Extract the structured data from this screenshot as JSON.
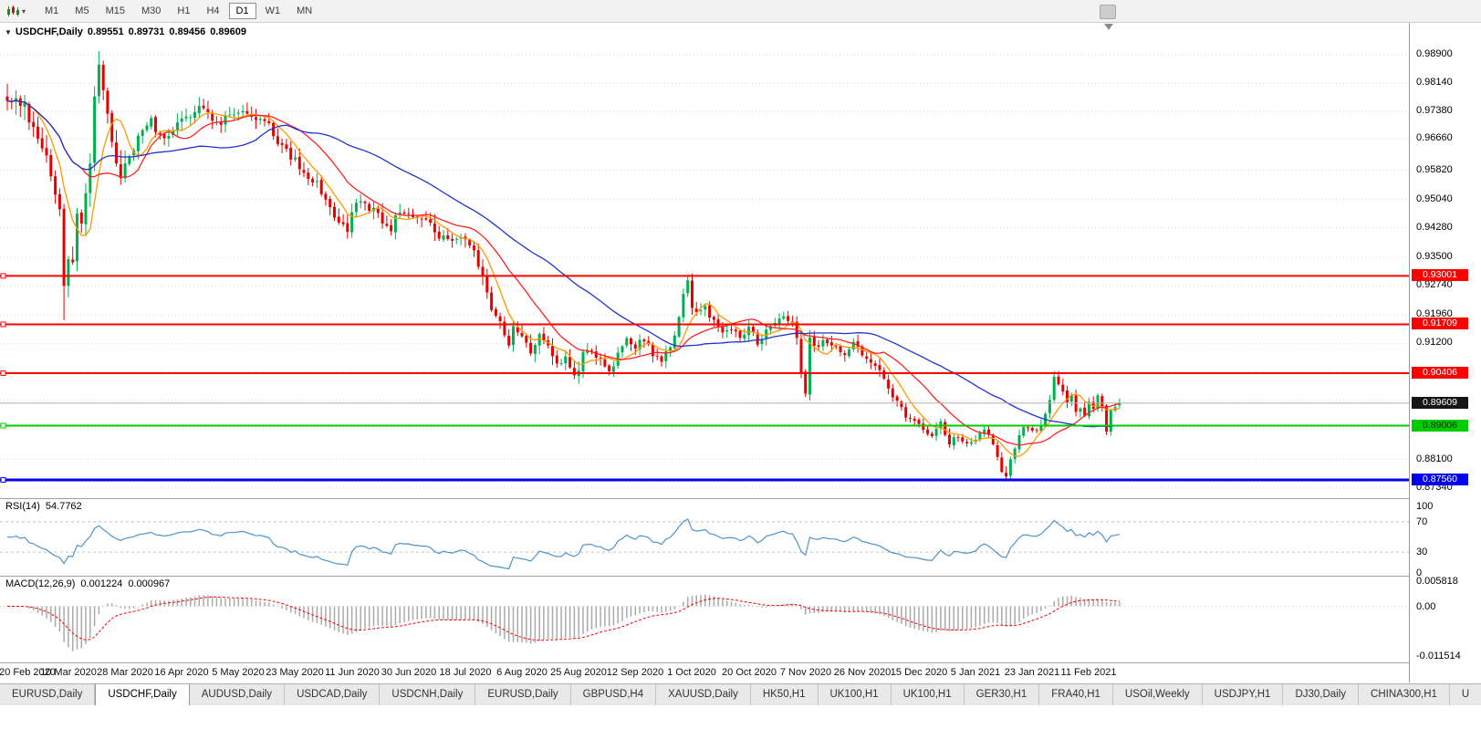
{
  "toolbar": {
    "timeframes": [
      "M1",
      "M5",
      "M15",
      "M30",
      "H1",
      "H4",
      "D1",
      "W1",
      "MN"
    ],
    "active_timeframe": "D1"
  },
  "chart_title": {
    "symbol": "USDCHF,Daily",
    "open": "0.89551",
    "high": "0.89731",
    "low": "0.89456",
    "close": "0.89609"
  },
  "price_axis": {
    "ticks": [
      "0.98900",
      "0.98140",
      "0.97380",
      "0.96660",
      "0.95820",
      "0.95040",
      "0.94280",
      "0.93500",
      "0.92740",
      "0.91960",
      "0.91200",
      "0.88100",
      "0.87340"
    ],
    "level_labels": [
      {
        "text": "0.93001",
        "price": 0.93001,
        "bg": "#ff0000",
        "fg": "#ffffff"
      },
      {
        "text": "0.91709",
        "price": 0.91709,
        "bg": "#ff0000",
        "fg": "#ffffff"
      },
      {
        "text": "0.90406",
        "price": 0.90406,
        "bg": "#ff0000",
        "fg": "#ffffff"
      },
      {
        "text": "0.89609",
        "price": 0.89609,
        "bg": "#151515",
        "fg": "#ffffff"
      },
      {
        "text": "0.89006",
        "price": 0.89006,
        "bg": "#00cc00",
        "fg": "#073300"
      },
      {
        "text": "0.87560",
        "price": 0.8756,
        "bg": "#0000ee",
        "fg": "#ffffff"
      }
    ]
  },
  "rsi_panel": {
    "name": "RSI(14)",
    "value": "54.7762",
    "axis_labels": [
      {
        "text": "100",
        "v": 100
      },
      {
        "text": "70",
        "v": 70
      },
      {
        "text": "30",
        "v": 30
      },
      {
        "text": "0",
        "v": 0
      }
    ]
  },
  "macd_panel": {
    "name": "MACD(12,26,9)",
    "value_main": "0.001224",
    "value_signal": "0.000967",
    "axis_labels": [
      {
        "text": "0.005818",
        "v": 0.005818
      },
      {
        "text": "0.00",
        "v": 0
      },
      {
        "text": "-0.011514",
        "v": -0.011514
      }
    ]
  },
  "date_axis": [
    "20 Feb 2020",
    "10 Mar 2020",
    "28 Mar 2020",
    "16 Apr 2020",
    "5 May 2020",
    "23 May 2020",
    "11 Jun 2020",
    "30 Jun 2020",
    "18 Jul 2020",
    "6 Aug 2020",
    "25 Aug 2020",
    "12 Sep 2020",
    "1 Oct 2020",
    "20 Oct 2020",
    "7 Nov 2020",
    "26 Nov 2020",
    "15 Dec 2020",
    "5 Jan 2021",
    "23 Jan 2021",
    "11 Feb 2021"
  ],
  "symbol_tabs": [
    {
      "label": "EURUSD,Daily",
      "active": false
    },
    {
      "label": "USDCHF,Daily",
      "active": true
    },
    {
      "label": "AUDUSD,Daily",
      "active": false
    },
    {
      "label": "USDCAD,Daily",
      "active": false
    },
    {
      "label": "USDCNH,Daily",
      "active": false
    },
    {
      "label": "EURUSD,Daily",
      "active": false
    },
    {
      "label": "GBPUSD,H4",
      "active": false
    },
    {
      "label": "XAUUSD,Daily",
      "active": false
    },
    {
      "label": "HK50,H1",
      "active": false
    },
    {
      "label": "UK100,H1",
      "active": false
    },
    {
      "label": "UK100,H1",
      "active": false
    },
    {
      "label": "GER30,H1",
      "active": false
    },
    {
      "label": "FRA40,H1",
      "active": false
    },
    {
      "label": "USOil,Weekly",
      "active": false
    },
    {
      "label": "USDJPY,H1",
      "active": false
    },
    {
      "label": "DJ30,Daily",
      "active": false
    },
    {
      "label": "CHINA300,H1",
      "active": false
    },
    {
      "label": "U",
      "active": false
    }
  ],
  "chart_data": {
    "type": "candlestick",
    "symbol": "USDCHF",
    "timeframe": "Daily",
    "title": "USDCHF,Daily 0.89551 0.89731 0.89456 0.89609",
    "last_ohlc": {
      "open": 0.89551,
      "high": 0.89731,
      "low": 0.89456,
      "close": 0.89609
    },
    "num_days": 256,
    "close_anchors": [
      [
        0,
        0.978
      ],
      [
        2,
        0.9772
      ],
      [
        4,
        0.9745
      ],
      [
        6,
        0.97
      ],
      [
        8,
        0.964
      ],
      [
        10,
        0.958
      ],
      [
        12,
        0.948
      ],
      [
        13,
        0.9285
      ],
      [
        14,
        0.936
      ],
      [
        15,
        0.933
      ],
      [
        16,
        0.947
      ],
      [
        17,
        0.944
      ],
      [
        18,
        0.952
      ],
      [
        19,
        0.961
      ],
      [
        20,
        0.976
      ],
      [
        21,
        0.985
      ],
      [
        22,
        0.98
      ],
      [
        23,
        0.972
      ],
      [
        24,
        0.9655
      ],
      [
        26,
        0.957
      ],
      [
        28,
        0.9625
      ],
      [
        30,
        0.967
      ],
      [
        33,
        0.971
      ],
      [
        36,
        0.9665
      ],
      [
        39,
        0.97
      ],
      [
        42,
        0.9735
      ],
      [
        45,
        0.975
      ],
      [
        48,
        0.9712
      ],
      [
        51,
        0.972
      ],
      [
        54,
        0.9735
      ],
      [
        57,
        0.972
      ],
      [
        60,
        0.9705
      ],
      [
        63,
        0.964
      ],
      [
        66,
        0.9605
      ],
      [
        68,
        0.958
      ],
      [
        70,
        0.956
      ],
      [
        73,
        0.951
      ],
      [
        76,
        0.944
      ],
      [
        78,
        0.9425
      ],
      [
        80,
        0.95
      ],
      [
        82,
        0.9495
      ],
      [
        85,
        0.946
      ],
      [
        88,
        0.9425
      ],
      [
        90,
        0.9475
      ],
      [
        93,
        0.9465
      ],
      [
        96,
        0.9445
      ],
      [
        99,
        0.9405
      ],
      [
        102,
        0.939
      ],
      [
        105,
        0.9395
      ],
      [
        107,
        0.937
      ],
      [
        109,
        0.929
      ],
      [
        111,
        0.922
      ],
      [
        113,
        0.9175
      ],
      [
        115,
        0.911
      ],
      [
        116,
        0.9165
      ],
      [
        118,
        0.913
      ],
      [
        120,
        0.9105
      ],
      [
        122,
        0.914
      ],
      [
        124,
        0.911
      ],
      [
        126,
        0.9065
      ],
      [
        128,
        0.9075
      ],
      [
        130,
        0.9035
      ],
      [
        132,
        0.9085
      ],
      [
        134,
        0.9095
      ],
      [
        136,
        0.9085
      ],
      [
        138,
        0.904
      ],
      [
        140,
        0.9095
      ],
      [
        142,
        0.9125
      ],
      [
        144,
        0.9105
      ],
      [
        146,
        0.9135
      ],
      [
        148,
        0.9085
      ],
      [
        150,
        0.9075
      ],
      [
        152,
        0.9105
      ],
      [
        154,
        0.9185
      ],
      [
        155,
        0.9255
      ],
      [
        156,
        0.929
      ],
      [
        157,
        0.9215
      ],
      [
        158,
        0.9195
      ],
      [
        160,
        0.922
      ],
      [
        162,
        0.9175
      ],
      [
        164,
        0.9155
      ],
      [
        166,
        0.9165
      ],
      [
        168,
        0.9135
      ],
      [
        170,
        0.9155
      ],
      [
        172,
        0.9125
      ],
      [
        174,
        0.915
      ],
      [
        176,
        0.9165
      ],
      [
        178,
        0.9188
      ],
      [
        180,
        0.9175
      ],
      [
        181,
        0.9135
      ],
      [
        182,
        0.9035
      ],
      [
        183,
        0.8995
      ],
      [
        184,
        0.913
      ],
      [
        186,
        0.9115
      ],
      [
        188,
        0.9125
      ],
      [
        190,
        0.9105
      ],
      [
        192,
        0.9085
      ],
      [
        194,
        0.9115
      ],
      [
        196,
        0.9095
      ],
      [
        198,
        0.9065
      ],
      [
        200,
        0.9042
      ],
      [
        202,
        0.9005
      ],
      [
        204,
        0.8965
      ],
      [
        206,
        0.8925
      ],
      [
        208,
        0.8905
      ],
      [
        210,
        0.889
      ],
      [
        212,
        0.8865
      ],
      [
        214,
        0.8905
      ],
      [
        216,
        0.8855
      ],
      [
        218,
        0.8875
      ],
      [
        220,
        0.8845
      ],
      [
        222,
        0.8865
      ],
      [
        224,
        0.8885
      ],
      [
        226,
        0.8855
      ],
      [
        227,
        0.8815
      ],
      [
        228,
        0.8775
      ],
      [
        229,
        0.8762
      ],
      [
        230,
        0.8815
      ],
      [
        231,
        0.8845
      ],
      [
        233,
        0.8895
      ],
      [
        235,
        0.8885
      ],
      [
        236,
        0.8895
      ],
      [
        238,
        0.8925
      ],
      [
        239,
        0.8975
      ],
      [
        240,
        0.903
      ],
      [
        241,
        0.9005
      ],
      [
        242,
        0.8995
      ],
      [
        243,
        0.8965
      ],
      [
        244,
        0.8975
      ],
      [
        245,
        0.8945
      ],
      [
        246,
        0.8955
      ],
      [
        247,
        0.8935
      ],
      [
        248,
        0.8965
      ],
      [
        249,
        0.8945
      ],
      [
        250,
        0.8975
      ],
      [
        251,
        0.8955
      ],
      [
        252,
        0.8885
      ],
      [
        253,
        0.8945
      ],
      [
        254,
        0.8955
      ],
      [
        255,
        0.8961
      ]
    ],
    "pinned_extremes": [
      {
        "day": 13,
        "low": 0.9182
      },
      {
        "day": 21,
        "high": 0.99
      },
      {
        "day": 156,
        "high": 0.93005
      },
      {
        "day": 229,
        "low": 0.8757
      },
      {
        "day": 240,
        "high": 0.90465
      }
    ],
    "grid_prices": [
      0.989,
      0.9814,
      0.9738,
      0.9666,
      0.9582,
      0.9504,
      0.9428,
      0.935,
      0.9274,
      0.9196,
      0.912,
      0.9044,
      0.8968,
      0.8892,
      0.881,
      0.8734
    ],
    "horizontal_levels": [
      {
        "price": 0.93001,
        "color": "#ff0000",
        "width": 2
      },
      {
        "price": 0.91709,
        "color": "#ff0000",
        "width": 2
      },
      {
        "price": 0.90406,
        "color": "#ff0000",
        "width": 2
      },
      {
        "price": 0.89006,
        "color": "#00cc00",
        "width": 2
      },
      {
        "price": 0.8756,
        "color": "#0000ee",
        "width": 3
      }
    ],
    "current_price": 0.89609,
    "moving_averages": [
      {
        "period": 7,
        "color": "#ff9900"
      },
      {
        "period": 18,
        "color": "#ff2222"
      },
      {
        "period": 45,
        "color": "#2233cc"
      }
    ],
    "rsi": {
      "period": 14,
      "value": 54.7762,
      "color": "#4f94cd",
      "levels": [
        70,
        30
      ],
      "range": [
        0,
        100
      ]
    },
    "macd": {
      "fast": 12,
      "slow": 26,
      "signal": 9,
      "main_value": 0.001224,
      "signal_value": 0.000967,
      "histogram_color": "#aaaaaa",
      "signal_color": "#ff0000",
      "axis_max": 0.005818,
      "axis_min": -0.011514
    },
    "candle_up_color": "#00b050",
    "candle_down_color": "#e60000",
    "dates_days": [
      1,
      14,
      27,
      40,
      53,
      66,
      79,
      92,
      105,
      118,
      131,
      144,
      157,
      170,
      183,
      196,
      209,
      222,
      235,
      248
    ]
  }
}
